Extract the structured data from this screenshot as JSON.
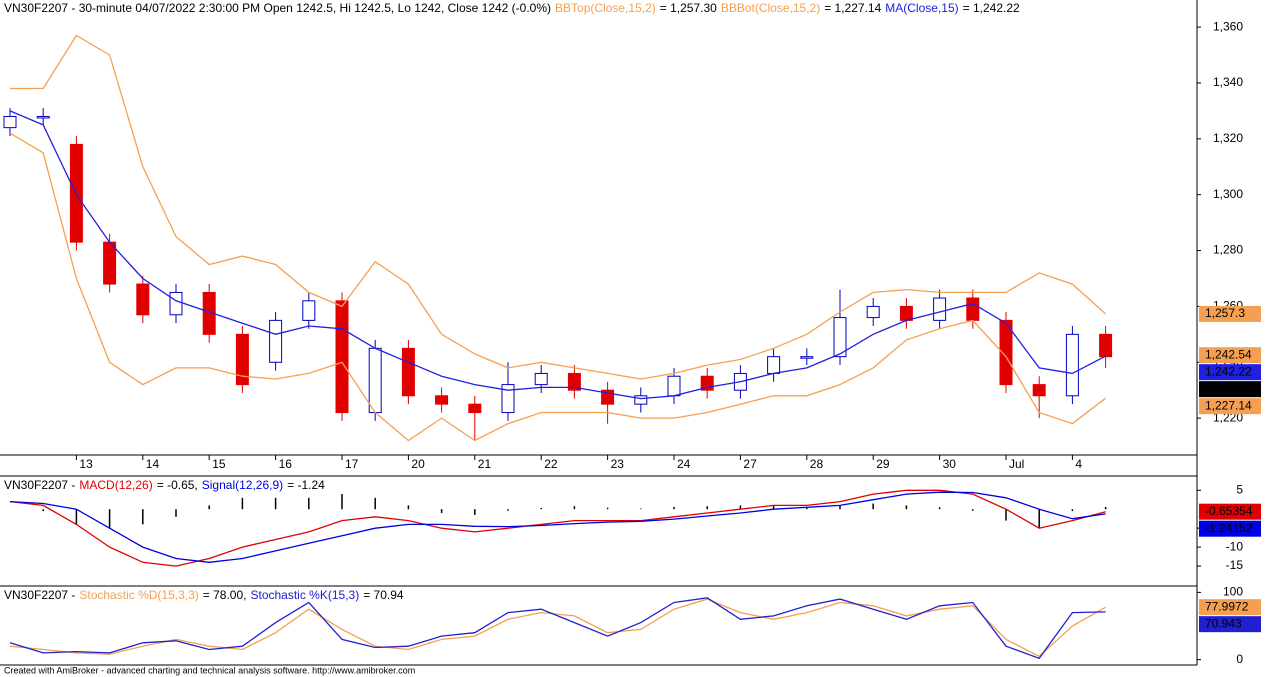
{
  "chart_data": [
    {
      "type": "candlestick",
      "title": "VN30F2207 - 30-minute 04/07/2022 2:30:00 PM Open 1242.5, Hi 1242.5, Lo 1242, Close 1242 (-0.0%)",
      "categories": [
        null,
        null,
        "13",
        null,
        "14",
        null,
        "15",
        null,
        "16",
        null,
        "17",
        null,
        "20",
        null,
        "21",
        null,
        "22",
        null,
        "23",
        null,
        "24",
        null,
        "27",
        null,
        "28",
        null,
        "29",
        null,
        "30",
        null,
        "Jul",
        null,
        "4",
        null
      ],
      "open": [
        1324,
        1328,
        1318,
        1283,
        1268,
        1257,
        1265,
        1250,
        1240,
        1255,
        1262,
        1222,
        1245,
        1228,
        1225,
        1222,
        1232,
        1236,
        1230,
        1225,
        1228,
        1235,
        1230,
        1236,
        1242,
        1242,
        1256,
        1260,
        1255,
        1263,
        1255,
        1232,
        1228,
        1250
      ],
      "high": [
        1331,
        1331,
        1321,
        1286,
        1271,
        1268,
        1268,
        1253,
        1258,
        1265,
        1265,
        1248,
        1248,
        1231,
        1228,
        1240,
        1239,
        1239,
        1233,
        1231,
        1238,
        1238,
        1239,
        1245,
        1245,
        1266,
        1263,
        1263,
        1266,
        1266,
        1258,
        1235,
        1253,
        1253
      ],
      "low": [
        1321,
        1325,
        1280,
        1265,
        1254,
        1254,
        1247,
        1229,
        1237,
        1252,
        1219,
        1219,
        1225,
        1222,
        1212,
        1219,
        1229,
        1227,
        1218,
        1222,
        1225,
        1227,
        1227,
        1233,
        1239,
        1239,
        1253,
        1252,
        1252,
        1252,
        1229,
        1220,
        1225,
        1238
      ],
      "close": [
        1328,
        1328,
        1283,
        1268,
        1257,
        1265,
        1250,
        1232,
        1255,
        1262,
        1222,
        1245,
        1228,
        1225,
        1222,
        1232,
        1236,
        1230,
        1225,
        1228,
        1235,
        1230,
        1236,
        1242,
        1242,
        1256,
        1260,
        1255,
        1263,
        1255,
        1232,
        1228,
        1250,
        1242
      ],
      "up_color": "#0000c0",
      "down_color": "#e00000",
      "series": [
        {
          "name": "BBTop(Close,15,2)",
          "readout": "= 1,257.30",
          "color": "#f5a050",
          "values": [
            1338,
            1338,
            1357,
            1350,
            1310,
            1285,
            1275,
            1278,
            1275,
            1265,
            1260,
            1276,
            1268,
            1250,
            1243,
            1238,
            1240,
            1238,
            1236,
            1234,
            1236,
            1239,
            1241,
            1245,
            1250,
            1258,
            1265,
            1266,
            1265,
            1265,
            1265,
            1272,
            1268,
            1257.3
          ]
        },
        {
          "name": "BBBot(Close,15,2)",
          "readout": "= 1,227.14",
          "color": "#f5a050",
          "values": [
            1322,
            1315,
            1270,
            1240,
            1232,
            1238,
            1238,
            1235,
            1234,
            1236,
            1240,
            1222,
            1212,
            1220,
            1212,
            1218,
            1222,
            1222,
            1222,
            1220,
            1220,
            1222,
            1225,
            1228,
            1228,
            1232,
            1238,
            1248,
            1252,
            1255,
            1242,
            1222,
            1218,
            1227.14
          ]
        },
        {
          "name": "MA(Close,15)",
          "readout": "= 1,242.22",
          "color": "#2020e0",
          "values": [
            1330,
            1325,
            1300,
            1283,
            1270,
            1262,
            1258,
            1254,
            1250,
            1253,
            1252,
            1245,
            1240,
            1235,
            1232,
            1230,
            1231,
            1231,
            1229,
            1227,
            1228,
            1231,
            1233,
            1236,
            1238,
            1243,
            1250,
            1255,
            1258,
            1261,
            1254,
            1238,
            1236,
            1242.22
          ]
        }
      ],
      "badges": [
        {
          "value": 1257.3,
          "label": "1,257.3",
          "color": "#f5a050",
          "text_color": "#000000"
        },
        {
          "value": 1242.54,
          "label": "1,242.54",
          "color": "#f5a050",
          "text_color": "#000000"
        },
        {
          "value": 1242.22,
          "label": "1,242.22",
          "color": "#2020e0",
          "text_color": "#ffffff"
        },
        {
          "value": 1242,
          "label": "1,242",
          "color": "#000000",
          "text_color": "#ffffff"
        },
        {
          "value": 1227.14,
          "label": "1,227.14",
          "color": "#f5a050",
          "text_color": "#000000"
        }
      ],
      "ylim": [
        1206.8,
        1369.7
      ],
      "yticks": [
        {
          "value": 1220,
          "label": "1,220"
        },
        {
          "value": 1240,
          "label": "1,240"
        },
        {
          "value": 1260,
          "label": "1,260"
        },
        {
          "value": 1280,
          "label": "1,280"
        },
        {
          "value": 1300,
          "label": "1,300"
        },
        {
          "value": 1320,
          "label": "1,320"
        },
        {
          "value": 1340,
          "label": "1,340"
        },
        {
          "value": 1360,
          "label": "1,360"
        }
      ]
    },
    {
      "type": "line",
      "title": "VN30F2207 -",
      "series": [
        {
          "name": "MACD(12,26)",
          "readout": "= -0.65,",
          "color": "#e00000",
          "values": [
            2,
            1,
            -4,
            -10,
            -14,
            -15,
            -13,
            -10,
            -8,
            -6,
            -3,
            -2,
            -3,
            -5,
            -6,
            -5,
            -4,
            -3,
            -3,
            -3,
            -2,
            -1,
            0,
            1,
            1,
            2,
            4,
            5,
            5,
            4,
            0,
            -5,
            -3,
            -0.65354
          ]
        },
        {
          "name": "Signal(12,26,9)",
          "readout": "= -1.24",
          "color": "#0000e0",
          "values": [
            2,
            1.5,
            0,
            -5,
            -10,
            -13,
            -14,
            -13,
            -11,
            -9,
            -7,
            -5,
            -4,
            -4,
            -4.5,
            -4.6,
            -4.3,
            -3.8,
            -3.4,
            -3.2,
            -2.6,
            -1.8,
            -1,
            0,
            0.5,
            1,
            2.5,
            4,
            4.5,
            4.4,
            3,
            0,
            -2.5,
            -1.24152
          ]
        }
      ],
      "histogram": [
        0,
        -0.5,
        -4,
        -5,
        -4,
        -2,
        1,
        3,
        3,
        3,
        4,
        3,
        1,
        -1,
        -1.5,
        -0.4,
        0.3,
        0.8,
        0.4,
        0.2,
        0.6,
        0.8,
        1,
        1,
        0.5,
        1,
        1.5,
        1,
        0.5,
        -0.4,
        -3,
        -5,
        -0.5,
        0.59
      ],
      "badges": [
        {
          "value": -0.65354,
          "label": "-0.65354",
          "color": "#e00000",
          "text_color": "#ffffff"
        },
        {
          "value": -1.24152,
          "label": "-1.24152",
          "color": "#0000e0",
          "text_color": "#ffffff"
        }
      ],
      "ylim": [
        -20,
        8.5
      ],
      "yticks": [
        5,
        -5,
        -10,
        -15
      ]
    },
    {
      "type": "line",
      "title": "VN30F2207 -",
      "series": [
        {
          "name": "Stochastic %D(15,3,3)",
          "readout": "= 78.00,",
          "color": "#f5a050",
          "values": [
            20,
            15,
            10,
            8,
            20,
            30,
            20,
            15,
            40,
            75,
            45,
            20,
            15,
            30,
            35,
            60,
            70,
            65,
            40,
            45,
            75,
            90,
            70,
            60,
            70,
            85,
            80,
            65,
            75,
            80,
            30,
            5,
            50,
            77.9972
          ]
        },
        {
          "name": "Stochastic %K(15,3)",
          "readout": "= 70.94",
          "color": "#2020d0",
          "values": [
            25,
            10,
            12,
            10,
            25,
            28,
            15,
            20,
            55,
            85,
            30,
            18,
            20,
            35,
            40,
            70,
            75,
            55,
            35,
            55,
            85,
            92,
            60,
            65,
            80,
            90,
            75,
            60,
            80,
            85,
            20,
            2,
            70,
            70.943
          ]
        }
      ],
      "badges": [
        {
          "value": 77.9972,
          "label": "77.9972",
          "color": "#f5a050",
          "text_color": "#000000"
        },
        {
          "value": 70.943,
          "label": "70.943",
          "color": "#2020d0",
          "text_color": "#ffffff"
        }
      ],
      "ylim": [
        -8,
        108
      ],
      "yticks": [
        0,
        100
      ]
    }
  ],
  "footer": "Created with AmiBroker - advanced charting and technical analysis software. http://www.amibroker.com"
}
